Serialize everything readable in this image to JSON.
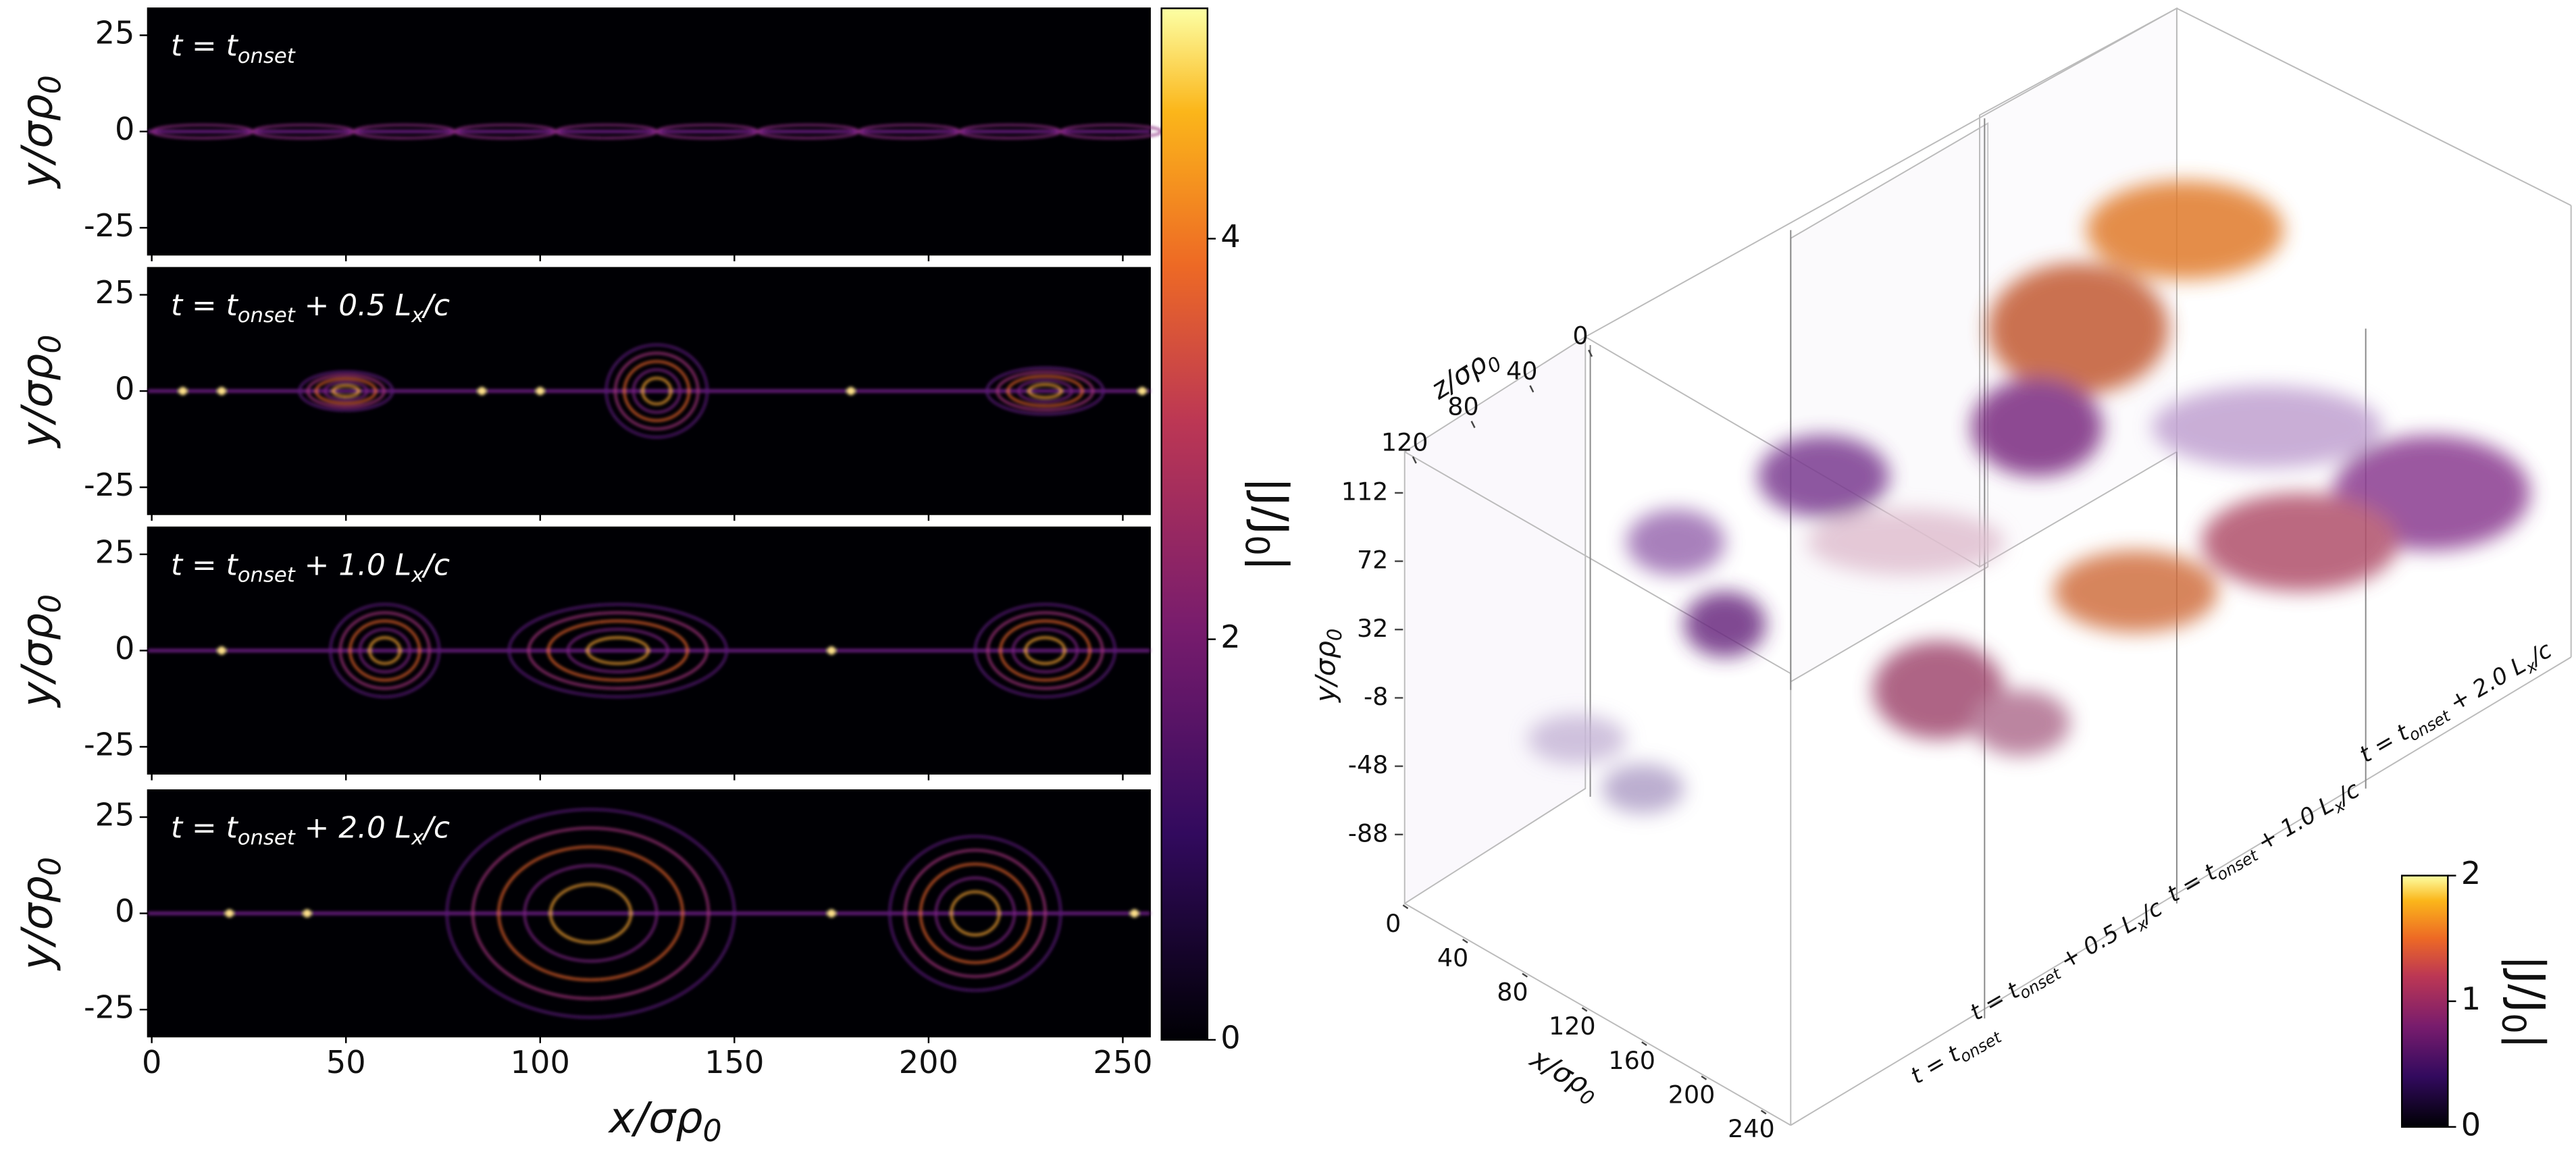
{
  "chart_data": [
    {
      "type": "heatmap",
      "panels": [
        {
          "label": [
            {
              "t": "t = t"
            },
            {
              "s": "onset"
            }
          ]
        },
        {
          "label": [
            {
              "t": "t = t"
            },
            {
              "s": "onset"
            },
            {
              "t": " + 0.5 L"
            },
            {
              "s": "x"
            },
            {
              "t": "/c"
            }
          ]
        },
        {
          "label": [
            {
              "t": "t = t"
            },
            {
              "s": "onset"
            },
            {
              "t": " + 1.0 L"
            },
            {
              "s": "x"
            },
            {
              "t": "/c"
            }
          ]
        },
        {
          "label": [
            {
              "t": "t = t"
            },
            {
              "s": "onset"
            },
            {
              "t": " + 2.0 L"
            },
            {
              "s": "x"
            },
            {
              "t": "/c"
            }
          ]
        }
      ],
      "xlabel": [
        {
          "t": "x/σρ"
        },
        {
          "s": "0"
        }
      ],
      "ylabel": [
        {
          "t": "y/σρ"
        },
        {
          "s": "0"
        }
      ],
      "xlim": [
        -1,
        257
      ],
      "xticks": [
        0,
        50,
        100,
        150,
        200,
        250
      ],
      "ylim": [
        -32,
        32
      ],
      "yticks": [
        -25,
        0,
        25
      ],
      "colorbar": {
        "clim": [
          0,
          5.15
        ],
        "ticks": [
          0,
          2,
          4
        ],
        "label": [
          {
            "t": "|J/J"
          },
          {
            "s": "0"
          },
          {
            "t": "|"
          }
        ],
        "colormap": "inferno"
      }
    },
    {
      "type": "volume",
      "xlabel": [
        {
          "t": "x/σρ"
        },
        {
          "s": "0"
        }
      ],
      "ylabel": [
        {
          "t": "y/σρ"
        },
        {
          "s": "0"
        }
      ],
      "zlabel": [
        {
          "t": "z/σρ"
        },
        {
          "s": "0"
        }
      ],
      "xticks": [
        0,
        40,
        80,
        120,
        160,
        200,
        240
      ],
      "yticks": [
        112,
        72,
        32,
        -8,
        -48,
        -88
      ],
      "zticks": [
        120,
        80,
        40,
        0
      ],
      "slices": [
        {
          "label": [
            {
              "t": "t = t"
            },
            {
              "s": "onset"
            }
          ]
        },
        {
          "label": [
            {
              "t": "t = t"
            },
            {
              "s": "onset"
            },
            {
              "t": " + 0.5 L"
            },
            {
              "s": "x"
            },
            {
              "t": "/c"
            }
          ]
        },
        {
          "label": [
            {
              "t": "t = t"
            },
            {
              "s": "onset"
            },
            {
              "t": " + 1.0 L"
            },
            {
              "s": "x"
            },
            {
              "t": "/c"
            }
          ]
        },
        {
          "label": [
            {
              "t": "t = t"
            },
            {
              "s": "onset"
            },
            {
              "t": " + 2.0 L"
            },
            {
              "s": "x"
            },
            {
              "t": "/c"
            }
          ]
        }
      ],
      "colorbar": {
        "clim": [
          0,
          2
        ],
        "ticks": [
          0,
          1,
          2
        ],
        "label": [
          {
            "t": "|J/J"
          },
          {
            "s": "0"
          },
          {
            "t": "|"
          }
        ],
        "colormap": "inferno"
      }
    }
  ]
}
